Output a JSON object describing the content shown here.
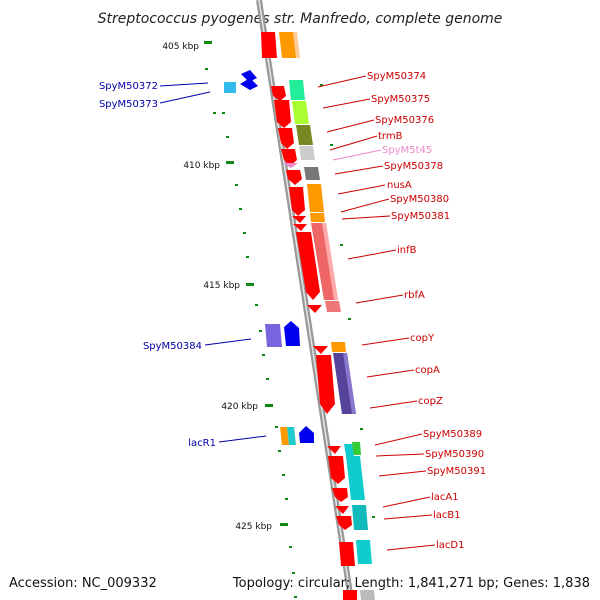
{
  "title": "Streptococcus pyogenes str. Manfredo, complete genome",
  "footer": {
    "accession": "Accession: NC_009332",
    "summary": "Topology: circular; Length: 1,841,271 bp; Genes: 1,838"
  },
  "ticks": [
    "405 kbp",
    "410 kbp",
    "415 kbp",
    "420 kbp",
    "425 kbp"
  ],
  "colors": {
    "right_label": "#cc0000",
    "left_label": "#0000aa",
    "trna_label": "#ee88cc",
    "tick_mark": "#118811",
    "backbone": "#999999"
  },
  "genes_right": [
    {
      "name": "SpyM50374"
    },
    {
      "name": "SpyM50375"
    },
    {
      "name": "SpyM50376"
    },
    {
      "name": "trmB"
    },
    {
      "name": "SpyM5t45"
    },
    {
      "name": "SpyM50378"
    },
    {
      "name": "nusA"
    },
    {
      "name": "SpyM50380"
    },
    {
      "name": "SpyM50381"
    },
    {
      "name": "infB"
    },
    {
      "name": "rbfA"
    },
    {
      "name": "copY"
    },
    {
      "name": "copA"
    },
    {
      "name": "copZ"
    },
    {
      "name": "SpyM50389"
    },
    {
      "name": "SpyM50390"
    },
    {
      "name": "SpyM50391"
    },
    {
      "name": "lacA1"
    },
    {
      "name": "lacB1"
    },
    {
      "name": "lacD1"
    }
  ],
  "genes_left": [
    {
      "name": "SpyM50372"
    },
    {
      "name": "SpyM50373"
    },
    {
      "name": "SpyM50384"
    },
    {
      "name": "lacR1"
    }
  ]
}
